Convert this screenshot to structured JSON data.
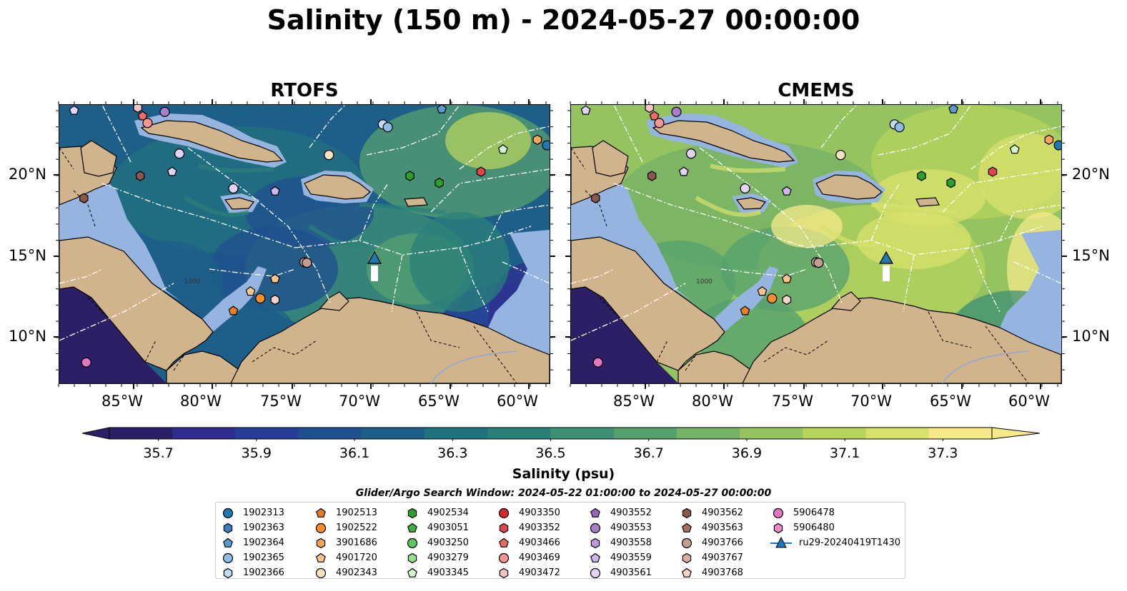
{
  "title": "Salinity (150 m) - 2024-05-27 00:00:00",
  "panels": [
    {
      "title": "RTOFS"
    },
    {
      "title": "CMEMS"
    }
  ],
  "map": {
    "lon_range": [
      -89.5,
      -58.5
    ],
    "lat_range": [
      7,
      24.5
    ],
    "lon_ticks": [
      "85°W",
      "80°W",
      "75°W",
      "70°W",
      "65°W",
      "60°W"
    ],
    "lat_ticks": [
      "20°N",
      "15°N",
      "10°N"
    ],
    "contour_label": "1000",
    "land_color": "#d2b48c",
    "shelf_color": "#95b5e0"
  },
  "colorbar": {
    "label": "Salinity (psu)",
    "ticks": [
      "35.7",
      "35.9",
      "36.1",
      "36.3",
      "36.5",
      "36.7",
      "36.9",
      "37.1",
      "37.3"
    ],
    "colors": [
      "#2d1f66",
      "#2f2d8f",
      "#273e98",
      "#1f4f8f",
      "#1d5f88",
      "#21727f",
      "#2a8079",
      "#3d8f75",
      "#56a06f",
      "#74b267",
      "#94c35f",
      "#b6d35c",
      "#d8e16c",
      "#f5e98a"
    ]
  },
  "legend": {
    "title": "Glider/Argo Search Window: 2024-05-22 01:00:00 to 2024-05-27 00:00:00",
    "items": [
      {
        "label": "1902313",
        "marker": "circle",
        "color": "#1f77b4"
      },
      {
        "label": "1902363",
        "marker": "hexagon",
        "color": "#3a7fc0"
      },
      {
        "label": "1902364",
        "marker": "pentagon",
        "color": "#5a9bd5"
      },
      {
        "label": "1902365",
        "marker": "circle",
        "color": "#8fbce6"
      },
      {
        "label": "1902366",
        "marker": "hexagon",
        "color": "#c4dcf2"
      },
      {
        "label": "1902513",
        "marker": "pentagon",
        "color": "#e67e22"
      },
      {
        "label": "1902522",
        "marker": "circle",
        "color": "#ff8c28"
      },
      {
        "label": "3901686",
        "marker": "hexagon",
        "color": "#ffa65a"
      },
      {
        "label": "4901720",
        "marker": "pentagon",
        "color": "#ffc48c"
      },
      {
        "label": "4902343",
        "marker": "circle",
        "color": "#ffe0bf"
      },
      {
        "label": "4902534",
        "marker": "hexagon",
        "color": "#2ca02c"
      },
      {
        "label": "4903051",
        "marker": "pentagon",
        "color": "#3fb13f"
      },
      {
        "label": "4903250",
        "marker": "circle",
        "color": "#5dc85d"
      },
      {
        "label": "4903279",
        "marker": "hexagon",
        "color": "#98df8a"
      },
      {
        "label": "4903345",
        "marker": "pentagon",
        "color": "#d4f5c8"
      },
      {
        "label": "4903350",
        "marker": "circle",
        "color": "#d62728"
      },
      {
        "label": "4903352",
        "marker": "hexagon",
        "color": "#e0444a"
      },
      {
        "label": "4903466",
        "marker": "pentagon",
        "color": "#f06a6a"
      },
      {
        "label": "4903469",
        "marker": "circle",
        "color": "#f79595"
      },
      {
        "label": "4903472",
        "marker": "hexagon",
        "color": "#fcc4c4"
      },
      {
        "label": "4903552",
        "marker": "pentagon",
        "color": "#9467bd"
      },
      {
        "label": "4903553",
        "marker": "circle",
        "color": "#a77fce"
      },
      {
        "label": "4903558",
        "marker": "hexagon",
        "color": "#bb9ade"
      },
      {
        "label": "4903559",
        "marker": "pentagon",
        "color": "#cfb6ec"
      },
      {
        "label": "4903561",
        "marker": "circle",
        "color": "#e3d3f7"
      },
      {
        "label": "4903562",
        "marker": "hexagon",
        "color": "#8c564b"
      },
      {
        "label": "4903563",
        "marker": "pentagon",
        "color": "#a8705f"
      },
      {
        "label": "4903766",
        "marker": "circle",
        "color": "#c49c94"
      },
      {
        "label": "4903767",
        "marker": "hexagon",
        "color": "#dbaea3"
      },
      {
        "label": "4903768",
        "marker": "pentagon",
        "color": "#f5d3c8"
      },
      {
        "label": "5906478",
        "marker": "circle",
        "color": "#e377c2"
      },
      {
        "label": "5906480",
        "marker": "hexagon",
        "color": "#f08ad0"
      },
      {
        "label": "ru29-20240419T1430",
        "marker": "triangle-line",
        "color": "#1f77b4"
      }
    ]
  }
}
